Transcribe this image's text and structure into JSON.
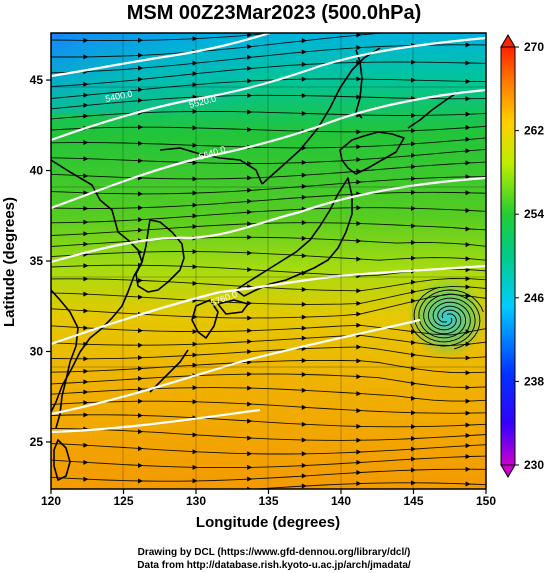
{
  "title": "MSM 00Z23Mar2023 (500.0hPa)",
  "axes": {
    "xlabel": "Longitude (degrees)",
    "ylabel": "Latitude  (degrees)",
    "xticks": [
      120,
      125,
      130,
      135,
      140,
      145,
      150
    ],
    "yticks": [
      25,
      30,
      35,
      40,
      45
    ],
    "xrange": [
      120,
      150
    ],
    "yrange": [
      22.4,
      47.6
    ]
  },
  "colorbar": {
    "ticks": [
      230,
      238,
      246,
      254,
      262,
      270
    ],
    "min": 230,
    "max": 270,
    "stops": [
      "#cc00cc",
      "#0000ff",
      "#00ccff",
      "#00cc66",
      "#33cc33",
      "#ccee00",
      "#ffcc00",
      "#ff6600",
      "#ff2200"
    ]
  },
  "contours": [
    {
      "label": "5400.0"
    },
    {
      "label": "5520.0"
    },
    {
      "label": "5640.0"
    },
    {
      "label": "5760.0"
    }
  ],
  "credits": {
    "line1": "Drawing by DCL (https://www.gfd-dennou.org/library/dcl/)",
    "line2": "Data from http://database.rish.kyoto-u.ac.jp/arch/jmadata/"
  },
  "chart_data": {
    "type": "heatmap",
    "title": "MSM 00Z23Mar2023 (500.0hPa)",
    "xlabel": "Longitude (degrees)",
    "ylabel": "Latitude  (degrees)",
    "xlim": [
      120,
      150
    ],
    "ylim": [
      22.4,
      47.6
    ],
    "color_range": [
      230,
      270
    ],
    "overlay": [
      "wind streamlines",
      "geopotential height contours",
      "coastlines"
    ],
    "contour_levels": [
      5400,
      5520,
      5640,
      5760
    ],
    "features": [
      {
        "name": "low-pressure vortex",
        "lon": 147.5,
        "lat": 33.5
      }
    ],
    "grid": true
  }
}
